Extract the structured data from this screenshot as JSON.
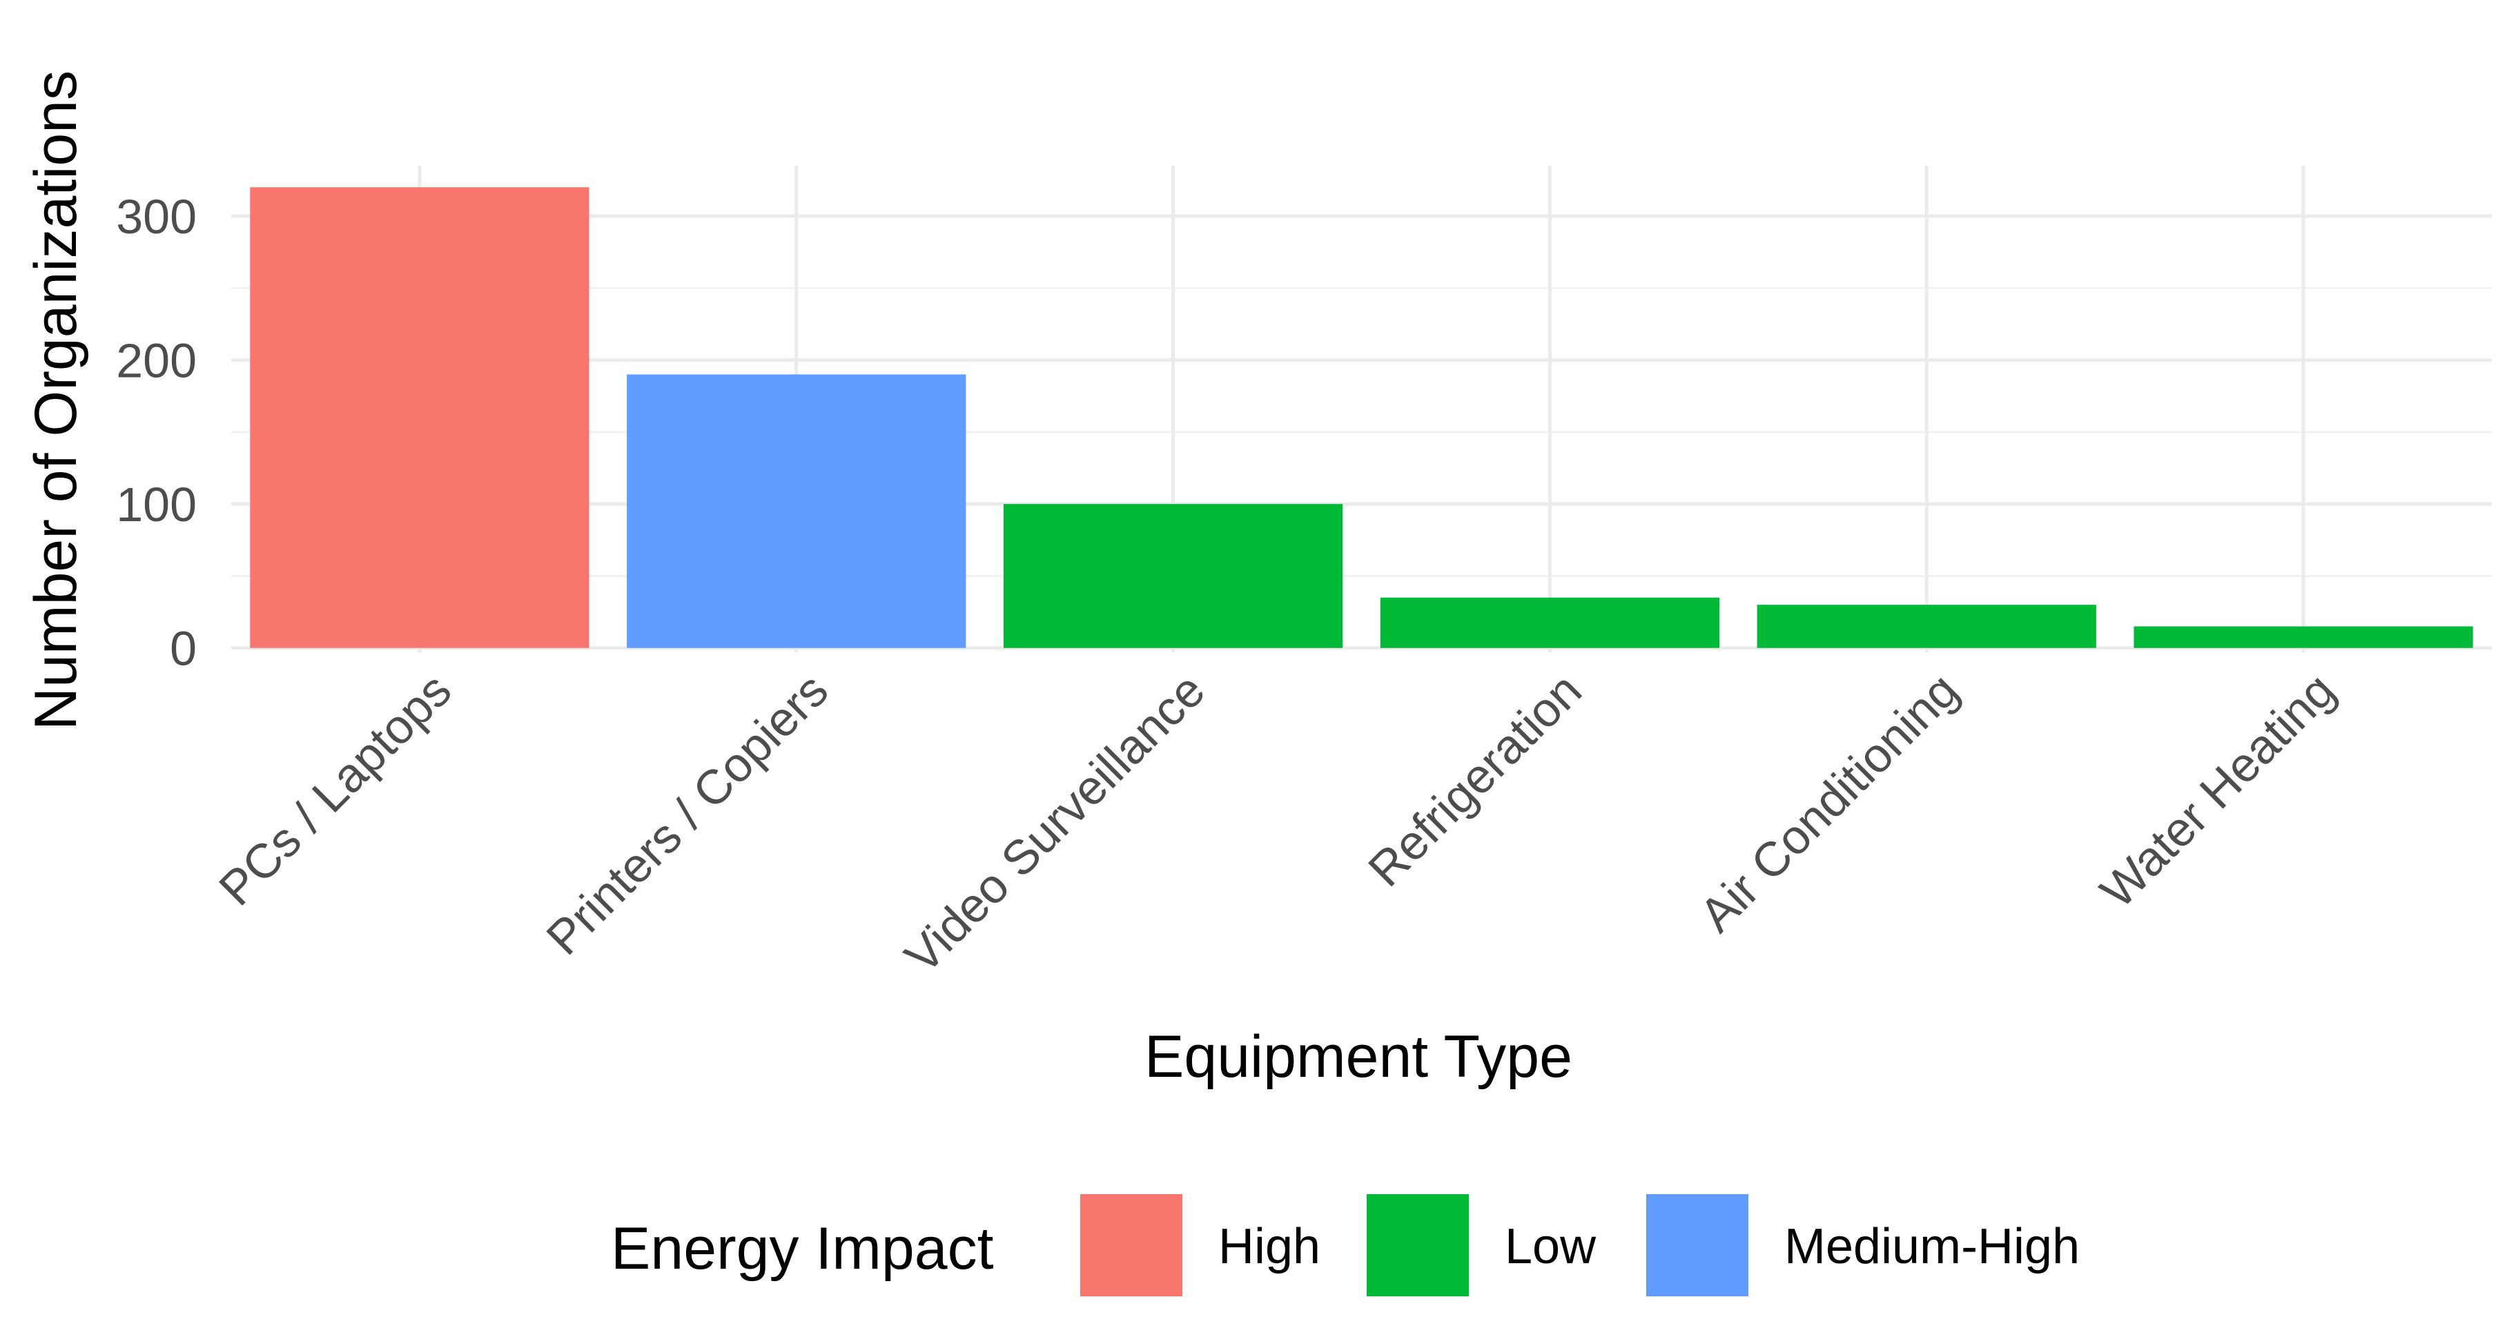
{
  "chart_data": {
    "type": "bar",
    "xlabel": "Equipment Type",
    "ylabel": "Number of Organizations",
    "categories": [
      "PCs / Laptops",
      "Printers / Copiers",
      "Video Surveillance",
      "Refrigeration",
      "Air Conditioning",
      "Water Heating"
    ],
    "values": [
      320,
      190,
      100,
      35,
      30,
      15
    ],
    "groups": [
      "High",
      "Medium-High",
      "Low",
      "Low",
      "Low",
      "Low"
    ],
    "ylim": [
      -3,
      335
    ],
    "yticks": [
      0,
      100,
      200,
      300
    ],
    "ytick_labels": [
      "0",
      "100",
      "200",
      "300"
    ],
    "grid": true,
    "legend": {
      "title": "Energy Impact",
      "position": "bottom",
      "items": [
        {
          "label": "High",
          "color": "#F8766D"
        },
        {
          "label": "Low",
          "color": "#00BA38"
        },
        {
          "label": "Medium-High",
          "color": "#619CFF"
        }
      ]
    }
  }
}
